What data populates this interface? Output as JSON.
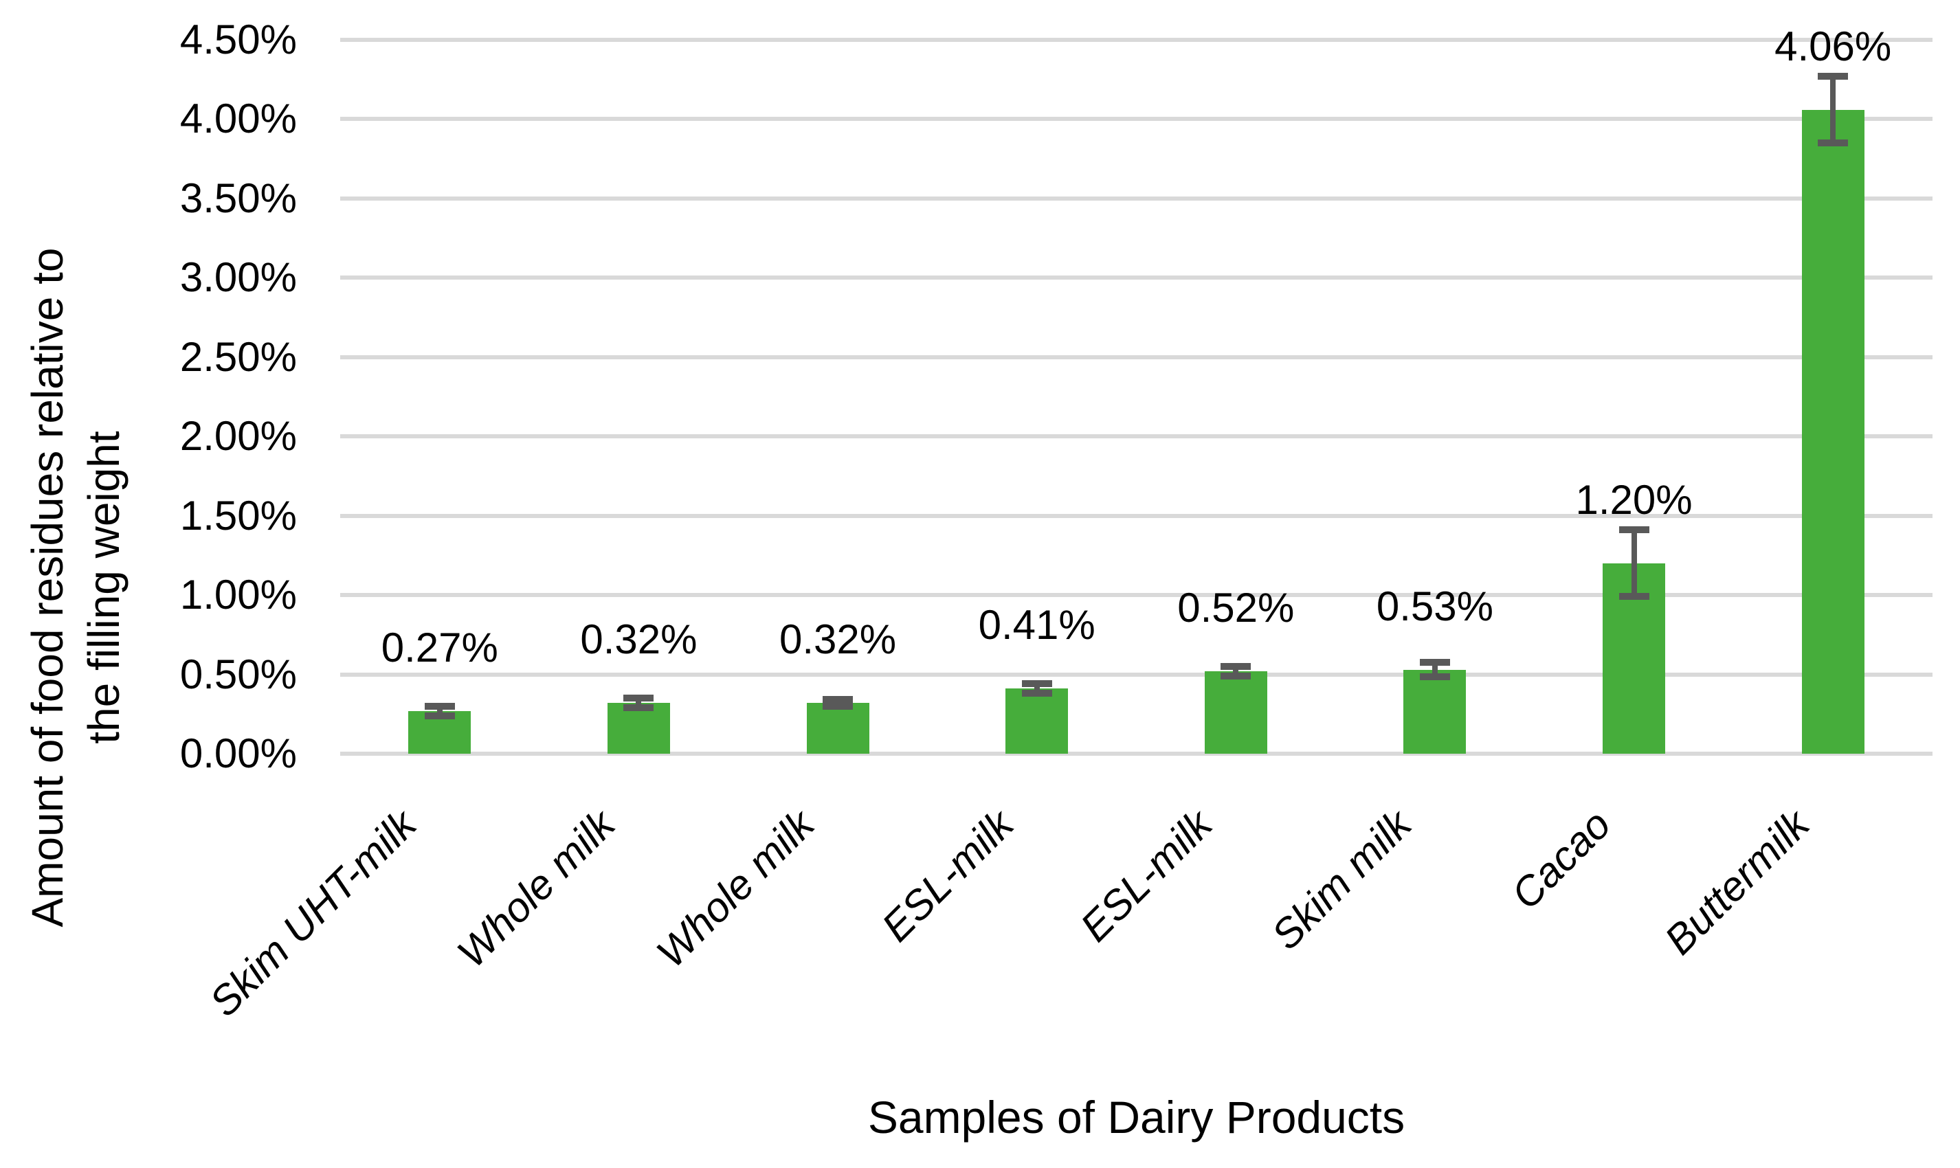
{
  "chart_data": {
    "type": "bar",
    "title": "",
    "xlabel": "Samples of Dairy Products",
    "ylabel": "Amount of food residues relative to the filling weight",
    "ylabel_lines": [
      "Amount of food residues relative to",
      "the filling weight"
    ],
    "categories": [
      "Skim UHT-milk",
      "Whole milk",
      "Whole milk",
      "ESL-milk",
      "ESL-milk",
      "Skim milk",
      "Cacao",
      "Buttermilk"
    ],
    "values": [
      0.27,
      0.32,
      0.32,
      0.41,
      0.52,
      0.53,
      1.2,
      4.06
    ],
    "value_labels": [
      "0.27%",
      "0.32%",
      "0.32%",
      "0.41%",
      "0.52%",
      "0.53%",
      "1.20%",
      "4.06%"
    ],
    "errors": [
      0.03,
      0.03,
      0.02,
      0.03,
      0.03,
      0.045,
      0.21,
      0.21
    ],
    "y_ticks": {
      "values": [
        0,
        0.5,
        1.0,
        1.5,
        2.0,
        2.5,
        3.0,
        3.5,
        4.0,
        4.5
      ],
      "labels": [
        "0.00%",
        "0.50%",
        "1.00%",
        "1.50%",
        "2.00%",
        "2.50%",
        "3.00%",
        "3.50%",
        "4.00%",
        "4.50%"
      ]
    },
    "ylim": [
      0,
      4.5
    ],
    "grid": true,
    "legend": "none",
    "colors": {
      "bar": "#46AD3B",
      "error_bar": "#595959",
      "gridline": "#D9D9D9",
      "text": "#000000",
      "background": "#FFFFFF"
    }
  }
}
